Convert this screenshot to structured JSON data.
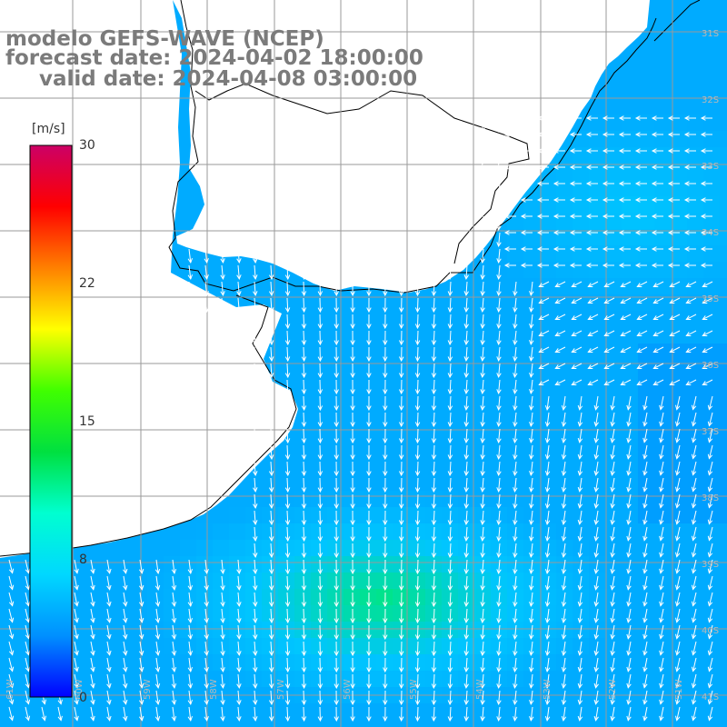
{
  "header": {
    "model": "modelo GEFS-WAVE (NCEP)",
    "forecast": "forecast date: 2024-04-02 18:00:00",
    "valid": "valid date: 2024-04-08 03:00:00"
  },
  "colorbar": {
    "unit": "[m/s]",
    "ticks": [
      {
        "label": "30",
        "value": 30
      },
      {
        "label": "22",
        "value": 22
      },
      {
        "label": "15",
        "value": 15
      },
      {
        "label": "8",
        "value": 8
      },
      {
        "label": "0",
        "value": 0
      }
    ],
    "range": [
      0,
      30
    ],
    "stops": [
      "#0000ff",
      "#0090ff",
      "#00d8ff",
      "#00ffd0",
      "#00e040",
      "#40ff00",
      "#ffff00",
      "#ff8000",
      "#ff0000",
      "#cc0066"
    ]
  },
  "map": {
    "lat_labels": [
      "31S",
      "32S",
      "33S",
      "34S",
      "35S",
      "36S",
      "37S",
      "38S",
      "39S",
      "40S",
      "41S"
    ],
    "lon_labels": [
      "61W",
      "60W",
      "59W",
      "58W",
      "57W",
      "56W",
      "55W",
      "54W",
      "53W",
      "52W",
      "51W"
    ],
    "field": "wind speed",
    "land_color": "#ffffff",
    "coast_color": "#000000",
    "grid_color": "#9a9a9a",
    "arrow_color": "#ffffff"
  }
}
